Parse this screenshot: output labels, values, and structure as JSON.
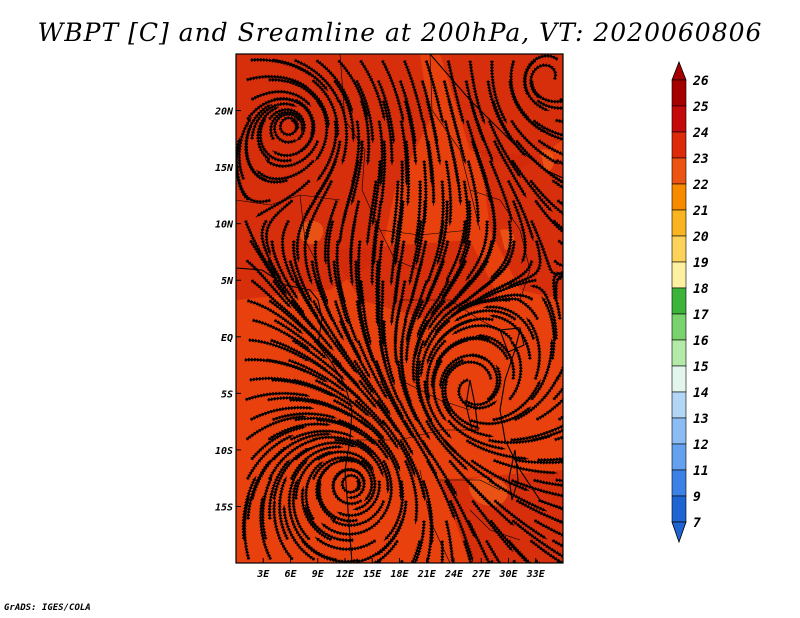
{
  "title": "WBPT [C] and Sreamline at 200hPa, VT: 2020060806",
  "footer": "GrADS: IGES/COLA",
  "map": {
    "lon_range": [
      0,
      36
    ],
    "lat_range": [
      -20,
      25
    ],
    "lon_ticks": [
      "3E",
      "6E",
      "9E",
      "12E",
      "15E",
      "18E",
      "21E",
      "24E",
      "27E",
      "30E",
      "33E"
    ],
    "lon_tick_values": [
      3,
      6,
      9,
      12,
      15,
      18,
      21,
      24,
      27,
      30,
      33
    ],
    "lat_ticks": [
      "20N",
      "15N",
      "10N",
      "5N",
      "EQ",
      "5S",
      "10S",
      "15S"
    ],
    "lat_tick_values": [
      20,
      15,
      10,
      5,
      0,
      -5,
      -10,
      -15
    ],
    "field_base_color": "#e8410e",
    "field_dark_color": "#d22a0c",
    "field_light_color": "#ee5a18"
  },
  "colorbar": {
    "levels": [
      "26",
      "25",
      "24",
      "23",
      "22",
      "21",
      "20",
      "19",
      "18",
      "17",
      "16",
      "15",
      "14",
      "13",
      "12",
      "11",
      "9",
      "7"
    ],
    "colors": [
      "#a50000",
      "#c40a0a",
      "#dc2a0a",
      "#ec5414",
      "#f88a00",
      "#f9b422",
      "#fcd25a",
      "#fdf0a0",
      "#3cb43c",
      "#78d26e",
      "#b4eaa8",
      "#e2f6ee",
      "#b4d6f6",
      "#8cbcf4",
      "#64a2f0",
      "#3c82e6",
      "#1e64d2"
    ],
    "top_arrow_color": "#a50000",
    "bottom_arrow_color": "#1e64d2"
  }
}
